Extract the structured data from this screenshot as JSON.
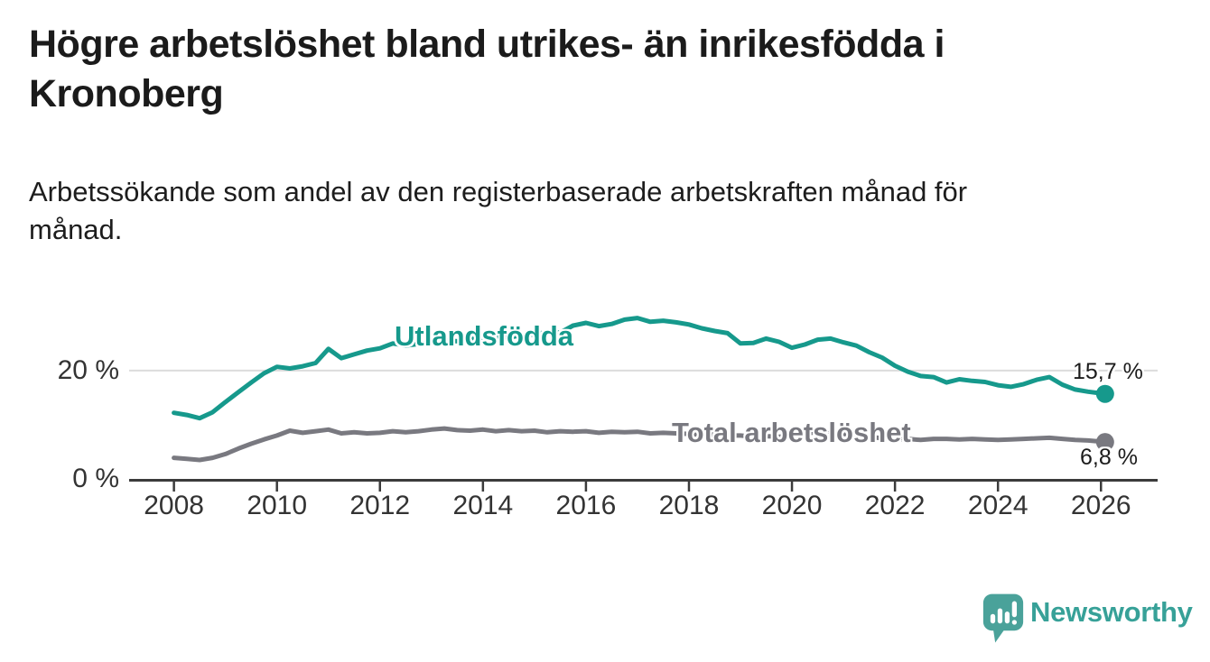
{
  "chart_data": {
    "type": "line",
    "title": "Högre arbetslöshet bland utrikes- än inrikesfödda i\nKronoberg",
    "subtitle": "Arbetssökande som andel av den registerbaserade arbetskraften månad för\nmånad.",
    "xlabel": "",
    "ylabel": "",
    "unit": "%",
    "xlim": [
      2007.13,
      2027.1
    ],
    "ylim": [
      0,
      31.8
    ],
    "grid_values": [
      20
    ],
    "y_ticks": [
      {
        "v": 20,
        "label": "20 %"
      },
      {
        "v": 0,
        "label": "0 %"
      }
    ],
    "x_ticks": [
      {
        "v": 2008,
        "label": "2008"
      },
      {
        "v": 2010,
        "label": "2010"
      },
      {
        "v": 2012,
        "label": "2012"
      },
      {
        "v": 2014,
        "label": "2014"
      },
      {
        "v": 2016,
        "label": "2016"
      },
      {
        "v": 2018,
        "label": "2018"
      },
      {
        "v": 2020,
        "label": "2020"
      },
      {
        "v": 2022,
        "label": "2022"
      },
      {
        "v": 2024,
        "label": "2024"
      },
      {
        "v": 2026,
        "label": "2026"
      }
    ],
    "x": [
      2008,
      2008.25,
      2008.5,
      2008.75,
      2009,
      2009.25,
      2009.5,
      2009.75,
      2010,
      2010.25,
      2010.5,
      2010.75,
      2011,
      2011.25,
      2011.5,
      2011.75,
      2012,
      2012.25,
      2012.5,
      2012.75,
      2013,
      2013.25,
      2013.5,
      2013.75,
      2014,
      2014.25,
      2014.5,
      2014.75,
      2015,
      2015.25,
      2015.5,
      2015.75,
      2016,
      2016.25,
      2016.5,
      2016.75,
      2017,
      2017.25,
      2017.5,
      2017.75,
      2018,
      2018.25,
      2018.5,
      2018.75,
      2019,
      2019.25,
      2019.5,
      2019.75,
      2020,
      2020.25,
      2020.5,
      2020.75,
      2021,
      2021.25,
      2021.5,
      2021.75,
      2022,
      2022.25,
      2022.5,
      2022.75,
      2023,
      2023.25,
      2023.5,
      2023.75,
      2024,
      2024.25,
      2024.5,
      2024.75,
      2025,
      2025.25,
      2025.5,
      2025.75,
      2026,
      2026.08
    ],
    "series": [
      {
        "name": "Utlandsfödda",
        "color": "#16998c",
        "end_value": 15.7,
        "end_label": "15,7 %",
        "values": [
          12.2,
          11.8,
          11.2,
          12.3,
          14.2,
          16.0,
          17.8,
          19.5,
          20.7,
          20.4,
          20.8,
          21.4,
          24.0,
          22.3,
          23.0,
          23.7,
          24.1,
          25.0,
          24.6,
          24.9,
          25.2,
          25.6,
          25.4,
          25.8,
          26.0,
          26.3,
          26.1,
          26.5,
          26.7,
          27.1,
          27.0,
          28.3,
          28.8,
          28.2,
          28.6,
          29.4,
          29.7,
          29.0,
          29.2,
          28.9,
          28.5,
          27.8,
          27.3,
          26.9,
          25.0,
          25.1,
          25.9,
          25.3,
          24.2,
          24.8,
          25.7,
          25.9,
          25.2,
          24.6,
          23.4,
          22.4,
          20.9,
          19.8,
          19.0,
          18.8,
          17.8,
          18.4,
          18.1,
          17.9,
          17.3,
          17.0,
          17.5,
          18.3,
          18.8,
          17.4,
          16.5,
          16.1,
          15.8,
          15.7
        ]
      },
      {
        "name": "Total arbetslöshet",
        "color": "#797980",
        "end_value": 6.8,
        "end_label": "6,8 %",
        "values": [
          3.9,
          3.7,
          3.5,
          3.9,
          4.6,
          5.6,
          6.5,
          7.3,
          8.0,
          8.9,
          8.5,
          8.8,
          9.1,
          8.4,
          8.6,
          8.4,
          8.5,
          8.8,
          8.6,
          8.8,
          9.1,
          9.3,
          9.0,
          8.9,
          9.1,
          8.8,
          9.0,
          8.8,
          8.9,
          8.6,
          8.8,
          8.7,
          8.8,
          8.5,
          8.7,
          8.6,
          8.7,
          8.4,
          8.5,
          8.4,
          8.3,
          8.1,
          8.2,
          8.0,
          8.0,
          7.8,
          7.9,
          7.8,
          8.0,
          8.4,
          8.6,
          8.5,
          8.3,
          8.0,
          7.8,
          7.5,
          7.3,
          7.4,
          7.2,
          7.4,
          7.4,
          7.3,
          7.4,
          7.3,
          7.2,
          7.3,
          7.4,
          7.5,
          7.6,
          7.4,
          7.2,
          7.1,
          6.9,
          6.8
        ]
      }
    ],
    "style": {
      "axis_color": "#3b3b3b",
      "grid_color": "#dcdcdc",
      "tick_label_color": "#333333",
      "line_width": 5,
      "end_dot_radius": 10
    }
  },
  "branding": {
    "logo_text": "Newsworthy",
    "icon": "speech-bubble-bar-chart",
    "icon_color": "#4aa29a",
    "text_color": "#37a198"
  }
}
